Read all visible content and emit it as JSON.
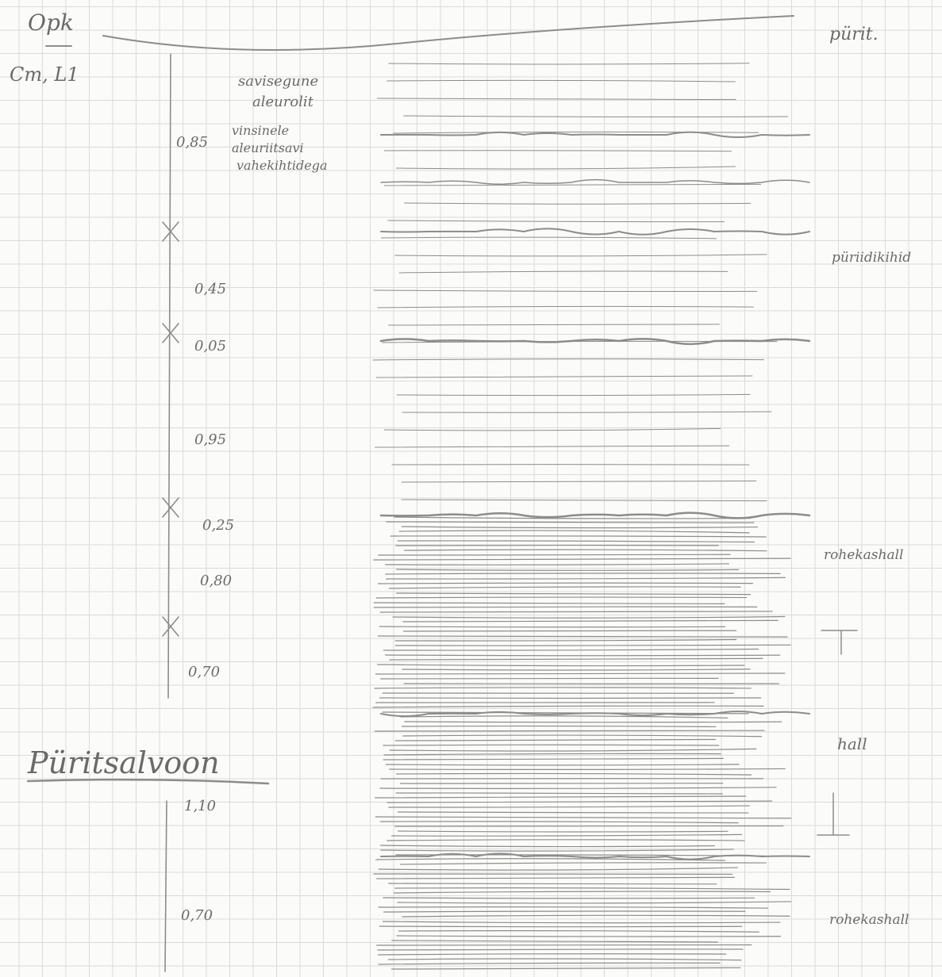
{
  "header": {
    "formation": "Opk",
    "index": "Cm, L1",
    "note": "pürit."
  },
  "descriptions": [
    {
      "lines": [
        "savisegune",
        "aleurolit"
      ]
    },
    {
      "lines": [
        "vinsinele",
        "aleuriitsavi",
        "vahekihtidega"
      ]
    }
  ],
  "thicknesses": [
    "0,85",
    "0,45",
    "0,05",
    "0,95",
    "0,25",
    "0,80",
    "0,70",
    "1,10",
    "0,70"
  ],
  "zone": "Püritsalvoon",
  "side_notes": [
    "püriidikihid",
    "rohekashall",
    "hall",
    "rohekashall"
  ]
}
